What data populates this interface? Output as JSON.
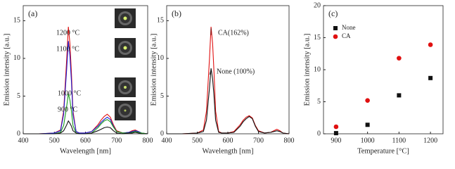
{
  "chart_data": [
    {
      "type": "line",
      "title": "(a)",
      "x_label": "Wavelength [nm]",
      "y_label": "Emission intensity [a.u.]",
      "x": [
        400,
        450,
        500,
        520,
        530,
        540,
        545,
        550,
        555,
        560,
        570,
        580,
        600,
        620,
        640,
        650,
        660,
        670,
        680,
        690,
        700,
        720,
        740,
        750,
        760,
        770,
        780,
        800
      ],
      "xlim": [
        400,
        800
      ],
      "xticks": [
        400,
        500,
        600,
        700,
        800
      ],
      "ylim": [
        0,
        17
      ],
      "yticks": [
        0,
        5,
        10,
        15
      ],
      "series": [
        {
          "name": "1200 °C",
          "color": "#e01010",
          "values": [
            0,
            0,
            0.1,
            0.5,
            3,
            10,
            14.2,
            12,
            8,
            3,
            0.3,
            0.1,
            0.1,
            0.3,
            1.2,
            1.8,
            2.3,
            2.6,
            2.2,
            1.2,
            0.4,
            0.1,
            0.2,
            0.4,
            0.5,
            0.3,
            0.1,
            0
          ]
        },
        {
          "name": "1100 °C",
          "color": "#1a1ad0",
          "values": [
            0,
            0,
            0.1,
            0.4,
            2.6,
            8.7,
            12.3,
            10.4,
            6.9,
            2.6,
            0.3,
            0.1,
            0.1,
            0.3,
            1.0,
            1.5,
            1.9,
            2.2,
            1.9,
            1.0,
            0.3,
            0.1,
            0.2,
            0.3,
            0.4,
            0.3,
            0.1,
            0
          ]
        },
        {
          "name": "1000 °C",
          "color": "#1a9a1a",
          "values": [
            0,
            0,
            0,
            0.2,
            1.1,
            3.7,
            5.3,
            4.5,
            3.0,
            1.1,
            0.1,
            0,
            0,
            0.1,
            0.8,
            1.3,
            1.7,
            1.9,
            1.6,
            0.9,
            0.3,
            0.1,
            0.1,
            0.2,
            0.3,
            0.2,
            0.1,
            0
          ]
        },
        {
          "name": "900 °C",
          "color": "#111111",
          "values": [
            0,
            0,
            0,
            0.1,
            0.4,
            1.2,
            1.7,
            1.4,
            1.0,
            0.4,
            0.1,
            0,
            0,
            0.1,
            0.4,
            0.6,
            0.8,
            0.9,
            0.8,
            0.4,
            0.1,
            0,
            0.1,
            0.1,
            0.2,
            0.1,
            0,
            0
          ]
        }
      ]
    },
    {
      "type": "line",
      "title": "(b)",
      "x_label": "Wavelength [nm]",
      "y_label": "Emission intensity [a.u.]",
      "x": [
        400,
        450,
        500,
        520,
        530,
        540,
        545,
        550,
        555,
        560,
        570,
        580,
        600,
        620,
        640,
        650,
        660,
        670,
        680,
        690,
        700,
        720,
        740,
        750,
        760,
        770,
        780,
        800
      ],
      "xlim": [
        400,
        800
      ],
      "xticks": [
        400,
        500,
        600,
        700,
        800
      ],
      "ylim": [
        0,
        17
      ],
      "yticks": [
        0,
        5,
        10,
        15
      ],
      "series": [
        {
          "name": "CA(162%)",
          "color": "#e01010",
          "values": [
            0,
            0,
            0.1,
            0.5,
            3,
            10,
            14.2,
            12,
            8,
            3,
            0.3,
            0.1,
            0.1,
            0.3,
            1.2,
            1.8,
            2.2,
            2.4,
            2.1,
            1.1,
            0.4,
            0.1,
            0.2,
            0.4,
            0.6,
            0.4,
            0.1,
            0
          ]
        },
        {
          "name": "None (100%)",
          "color": "#111111",
          "values": [
            0,
            0,
            0.1,
            0.3,
            1.8,
            6.1,
            8.7,
            7.3,
            4.9,
            1.8,
            0.2,
            0.1,
            0.1,
            0.2,
            1.0,
            1.6,
            2.0,
            2.3,
            2.0,
            1.0,
            0.3,
            0.1,
            0.2,
            0.3,
            0.4,
            0.3,
            0.1,
            0
          ]
        }
      ]
    },
    {
      "type": "scatter",
      "title": "(c)",
      "x_label": "Temperature [°C]",
      "y_label": "Emission intensity [a.u.]",
      "x": [
        900,
        1000,
        1100,
        1200
      ],
      "xlim": [
        860,
        1240
      ],
      "xticks": [
        900,
        1000,
        1100,
        1200
      ],
      "ylim": [
        0,
        20
      ],
      "yticks": [
        0,
        5,
        10,
        15,
        20
      ],
      "series": [
        {
          "name": "None",
          "color": "#111111",
          "marker": "square",
          "values": [
            0.1,
            1.4,
            6.0,
            8.7
          ]
        },
        {
          "name": "CA",
          "color": "#e01010",
          "marker": "circle",
          "values": [
            1.1,
            5.2,
            11.8,
            13.9
          ]
        }
      ]
    }
  ]
}
